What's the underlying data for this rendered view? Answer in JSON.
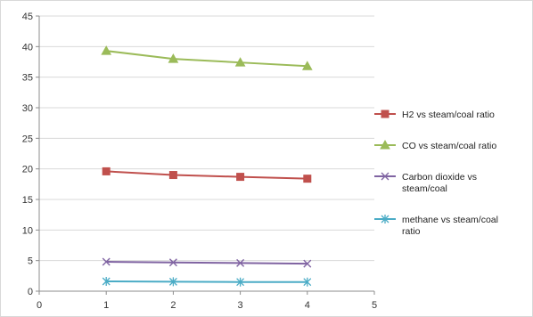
{
  "chart_data": {
    "type": "line",
    "title": "",
    "xlabel": "",
    "ylabel": "",
    "xlim": [
      0,
      5
    ],
    "ylim": [
      0,
      45
    ],
    "x_ticks": [
      "0",
      "1",
      "2",
      "3",
      "4",
      "5"
    ],
    "y_ticks": [
      "0",
      "5",
      "10",
      "15",
      "20",
      "25",
      "30",
      "35",
      "40",
      "45"
    ],
    "grid": "horizontal",
    "legend_position": "right",
    "x": [
      1,
      2,
      3,
      4
    ],
    "series": [
      {
        "name": "H2 vs steam/coal ratio",
        "values": [
          19.6,
          19.0,
          18.7,
          18.4
        ],
        "color": "#C0504D",
        "marker": "square"
      },
      {
        "name": "CO vs steam/coal ratio",
        "values": [
          39.3,
          38.0,
          37.4,
          36.8
        ],
        "color": "#9BBB59",
        "marker": "triangle"
      },
      {
        "name": "Carbon dioxide vs steam/coal",
        "values": [
          4.8,
          4.7,
          4.6,
          4.5
        ],
        "color": "#8064A2",
        "marker": "x"
      },
      {
        "name": "methane vs steam/coal ratio",
        "values": [
          1.6,
          1.55,
          1.5,
          1.5
        ],
        "color": "#4BACC6",
        "marker": "star"
      }
    ]
  }
}
